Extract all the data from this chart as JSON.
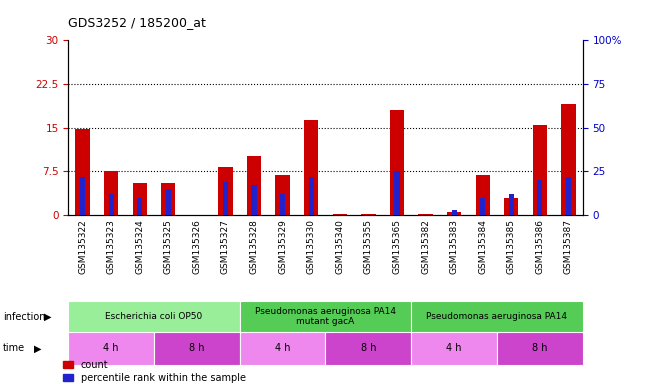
{
  "title": "GDS3252 / 185200_at",
  "samples": [
    "GSM135322",
    "GSM135323",
    "GSM135324",
    "GSM135325",
    "GSM135326",
    "GSM135327",
    "GSM135328",
    "GSM135329",
    "GSM135330",
    "GSM135340",
    "GSM135355",
    "GSM135365",
    "GSM135382",
    "GSM135383",
    "GSM135384",
    "GSM135385",
    "GSM135386",
    "GSM135387"
  ],
  "count_values": [
    14.8,
    7.6,
    5.5,
    5.5,
    0.05,
    8.2,
    10.2,
    6.8,
    16.3,
    0.1,
    0.1,
    18.0,
    0.1,
    0.6,
    6.8,
    3.0,
    15.5,
    19.0
  ],
  "percentile_values": [
    22.0,
    12.0,
    10.0,
    15.0,
    0.0,
    19.0,
    17.0,
    12.0,
    22.0,
    0.0,
    0.0,
    25.0,
    0.0,
    3.0,
    10.0,
    12.0,
    20.0,
    22.0
  ],
  "ylim_left": [
    0,
    30
  ],
  "ylim_right": [
    0,
    100
  ],
  "yticks_left": [
    0,
    7.5,
    15,
    22.5,
    30
  ],
  "yticks_right": [
    0,
    25,
    50,
    75,
    100
  ],
  "ytick_labels_left": [
    "0",
    "7.5",
    "15",
    "22.5",
    "30"
  ],
  "ytick_labels_right": [
    "0",
    "25",
    "50",
    "75",
    "100%"
  ],
  "bar_color_count": "#cc0000",
  "bar_color_pct": "#2222cc",
  "infection_groups": [
    {
      "label": "Escherichia coli OP50",
      "start": 0,
      "end": 6,
      "color": "#99ee99"
    },
    {
      "label": "Pseudomonas aeruginosa PA14\nmutant gacA",
      "start": 6,
      "end": 12,
      "color": "#55cc55"
    },
    {
      "label": "Pseudomonas aeruginosa PA14",
      "start": 12,
      "end": 18,
      "color": "#55cc55"
    }
  ],
  "time_groups": [
    {
      "label": "4 h",
      "start": 0,
      "end": 3,
      "color": "#ee88ee"
    },
    {
      "label": "8 h",
      "start": 3,
      "end": 6,
      "color": "#cc44cc"
    },
    {
      "label": "4 h",
      "start": 6,
      "end": 9,
      "color": "#ee88ee"
    },
    {
      "label": "8 h",
      "start": 9,
      "end": 12,
      "color": "#cc44cc"
    },
    {
      "label": "4 h",
      "start": 12,
      "end": 15,
      "color": "#ee88ee"
    },
    {
      "label": "8 h",
      "start": 15,
      "end": 18,
      "color": "#cc44cc"
    }
  ],
  "bg_color": "#ffffff",
  "axis_color_left": "#cc0000",
  "axis_color_right": "#0000cc",
  "infection_label": "infection",
  "time_label": "time",
  "legend_count": "count",
  "legend_pct": "percentile rank within the sample"
}
